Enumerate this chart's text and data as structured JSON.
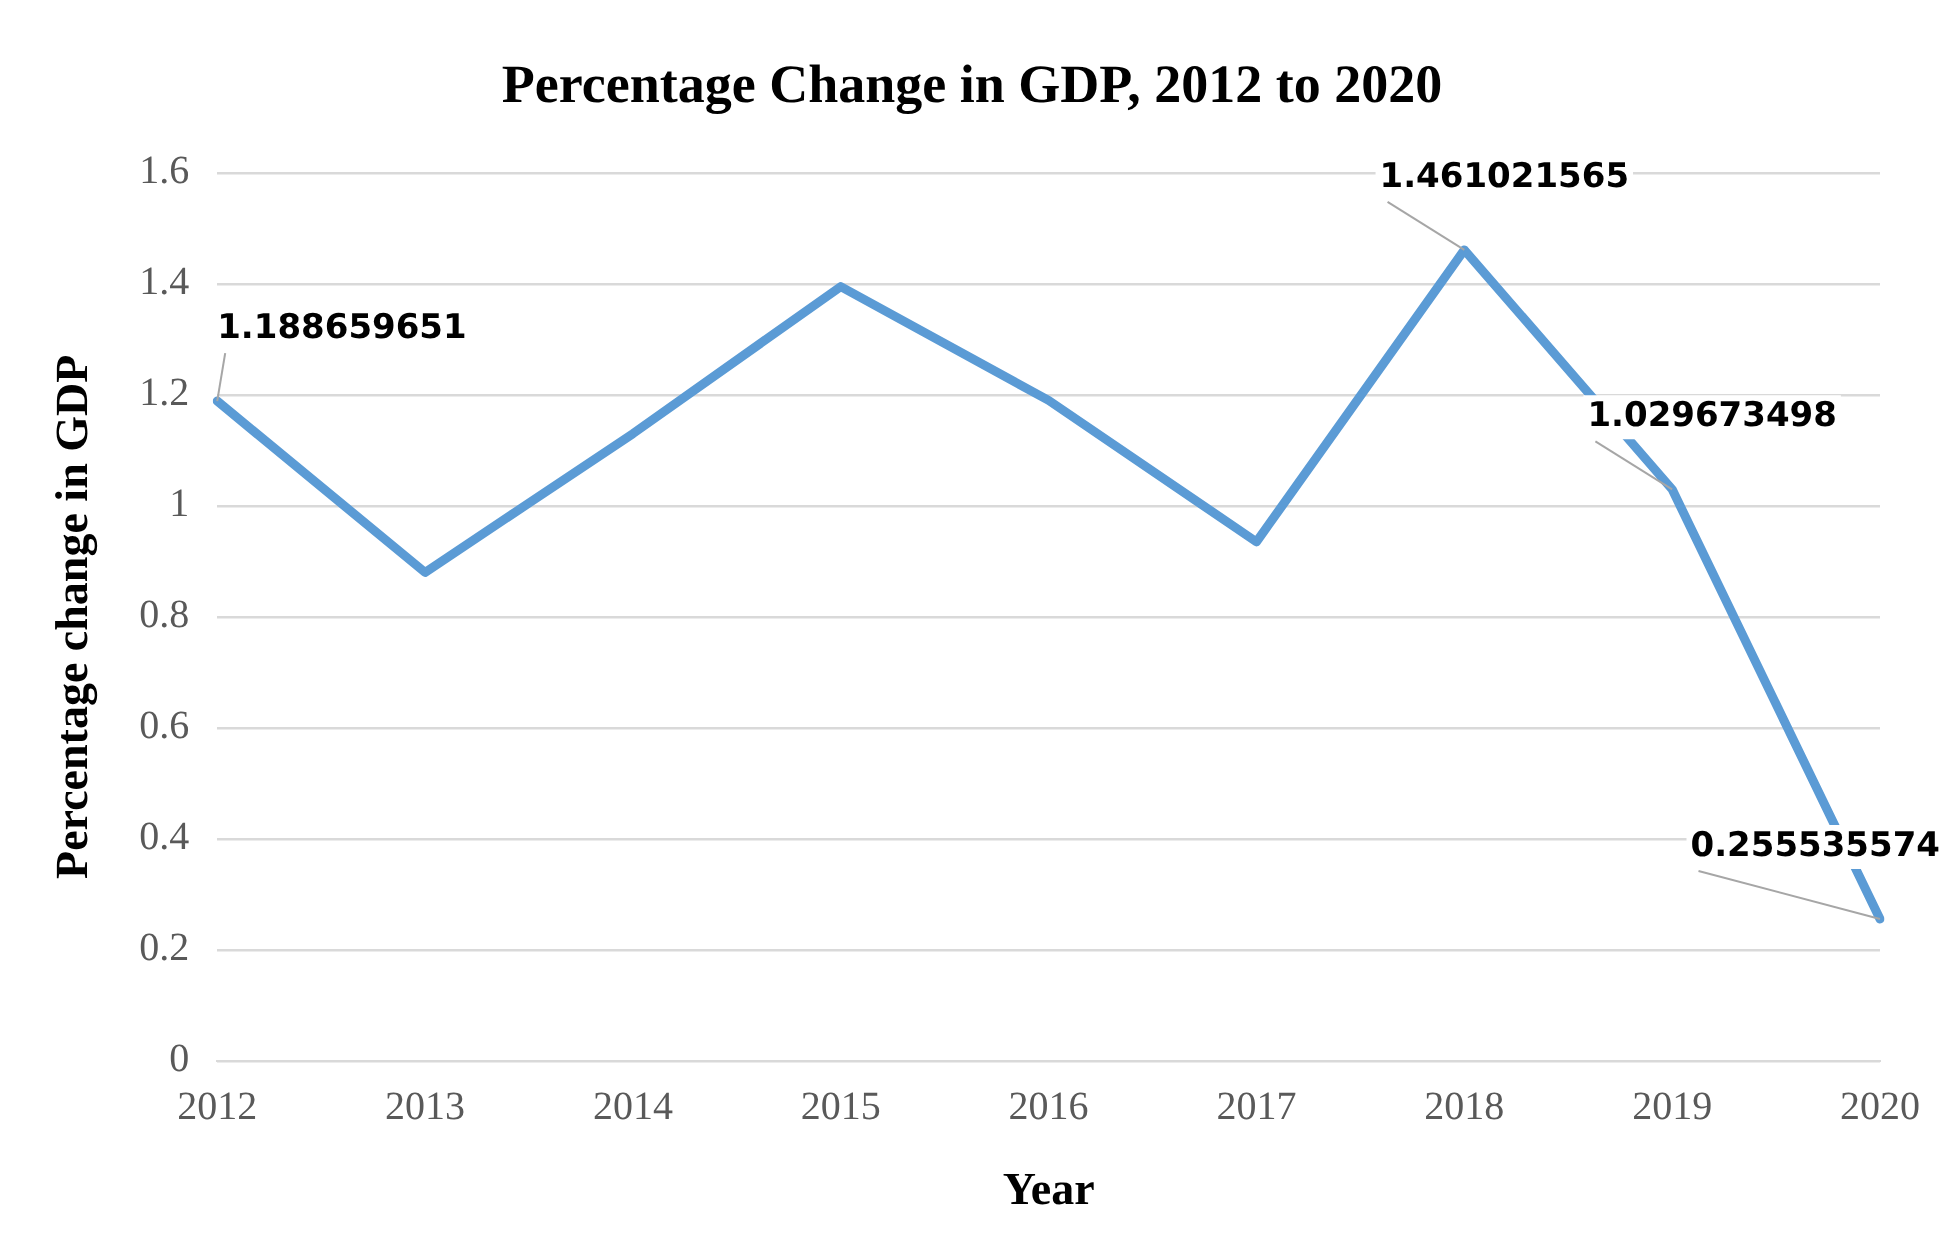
{
  "chart_data": {
    "type": "line",
    "title": "Percentage Change in GDP, 2012 to 2020",
    "xlabel": "Year",
    "ylabel": "Percentage change in GDP",
    "categories": [
      "2012",
      "2013",
      "2014",
      "2015",
      "2016",
      "2017",
      "2018",
      "2019",
      "2020"
    ],
    "series": [
      {
        "color": "#5b9bd5",
        "values": [
          1.188659651,
          0.88,
          1.13,
          1.395,
          1.19,
          0.935,
          1.461021565,
          1.029673498,
          0.255535574
        ],
        "value_labels": [
          "1.188659651",
          null,
          null,
          null,
          null,
          null,
          "1.461021565",
          "1.029673498",
          "0.255535574"
        ]
      }
    ],
    "ylim": [
      0,
      1.6
    ],
    "yticks": [
      0,
      {
        "value": 0.2,
        "label": "0.2"
      },
      {
        "value": 0.4,
        "label": "0.4"
      },
      {
        "value": 0.6,
        "label": "0.6"
      },
      {
        "value": 0.8,
        "label": "0.8"
      },
      1,
      {
        "value": 1.2,
        "label": "1.2"
      },
      {
        "value": 1.4,
        "label": "1.4"
      },
      {
        "value": 1.6,
        "label": "1.6"
      }
    ],
    "grid": "y",
    "legend": false,
    "marker": "none",
    "line_style": "solid"
  }
}
